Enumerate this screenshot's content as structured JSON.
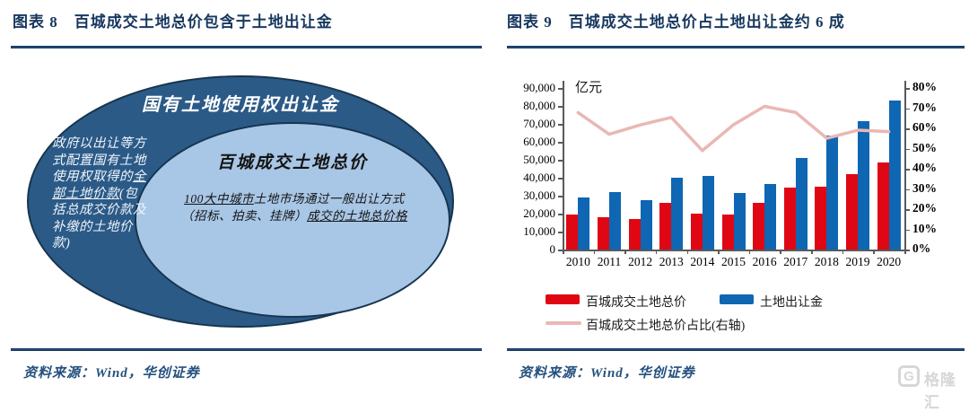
{
  "panels": {
    "left": {
      "caption_label": "图表 8",
      "caption_title": "百城成交土地总价包含于土地出让金",
      "source": "资料来源：Wind，华创证券",
      "diagram": {
        "outer_title": "国有土地使用权出让金",
        "outer_note_segments": {
          "pre": "政府以出让等方式配置国有土地使用权取得的",
          "underlined": "全部土地价款",
          "post": "(包括总成交价款及补缴的土地价款)"
        },
        "inner_title": "百城成交土地总价",
        "inner_body_segments": {
          "underlined_1": "100大中城市",
          "line1_rest": "土地市场通过一般出让方式",
          "line2_pre": "（招标、拍卖、挂牌）",
          "underlined_2": "成交的土地总价格"
        }
      }
    },
    "right": {
      "caption_label": "图表 9",
      "caption_title": "百城成交土地总价占土地出让金约 6 成",
      "source": "资料来源：Wind，华创证券"
    }
  },
  "chart_data": {
    "type": "bar",
    "subtype": "grouped bars with overlay line on secondary axis",
    "unit_label": "亿元",
    "categories": [
      "2010",
      "2011",
      "2012",
      "2013",
      "2014",
      "2015",
      "2016",
      "2017",
      "2018",
      "2019",
      "2020"
    ],
    "series": [
      {
        "name": "百城成交土地总价",
        "type": "bar",
        "axis": "left",
        "color": "#e00714",
        "values": [
          19600,
          18200,
          16900,
          26100,
          20200,
          19400,
          25800,
          34500,
          35000,
          42200,
          48500
        ]
      },
      {
        "name": "土地出让金",
        "type": "bar",
        "axis": "left",
        "color": "#0f66b3",
        "values": [
          28900,
          31900,
          27400,
          39900,
          41200,
          31400,
          36400,
          50800,
          63500,
          71400,
          83000
        ]
      },
      {
        "name": "百城成交土地总价占比(右轴)",
        "type": "line",
        "axis": "right",
        "color": "#e9b8b4",
        "values": [
          67.8,
          57.1,
          61.7,
          65.4,
          49.0,
          61.8,
          70.9,
          67.9,
          55.1,
          59.1,
          58.4
        ]
      }
    ],
    "left_axis": {
      "min": 0,
      "max": 90000,
      "step": 10000,
      "tick_labels": [
        "0",
        "10,000",
        "20,000",
        "30,000",
        "40,000",
        "50,000",
        "60,000",
        "70,000",
        "80,000",
        "90,000"
      ]
    },
    "right_axis": {
      "min": 0,
      "max": 80,
      "step": 10,
      "tick_labels": [
        "0%",
        "10%",
        "20%",
        "30%",
        "40%",
        "50%",
        "60%",
        "70%",
        "80%"
      ]
    },
    "grid": false,
    "legend_position": "bottom"
  },
  "watermark": {
    "logo_letter": "G",
    "text": "格隆汇"
  },
  "colors": {
    "caption_navy": "#17375e",
    "rule_navy": "#24507f",
    "outer_ellipse_fill": "#2b5a87",
    "inner_ellipse_fill": "#a8c6e5",
    "ellipse_border": "#16354f",
    "axis_gray": "#5a5a5a"
  }
}
